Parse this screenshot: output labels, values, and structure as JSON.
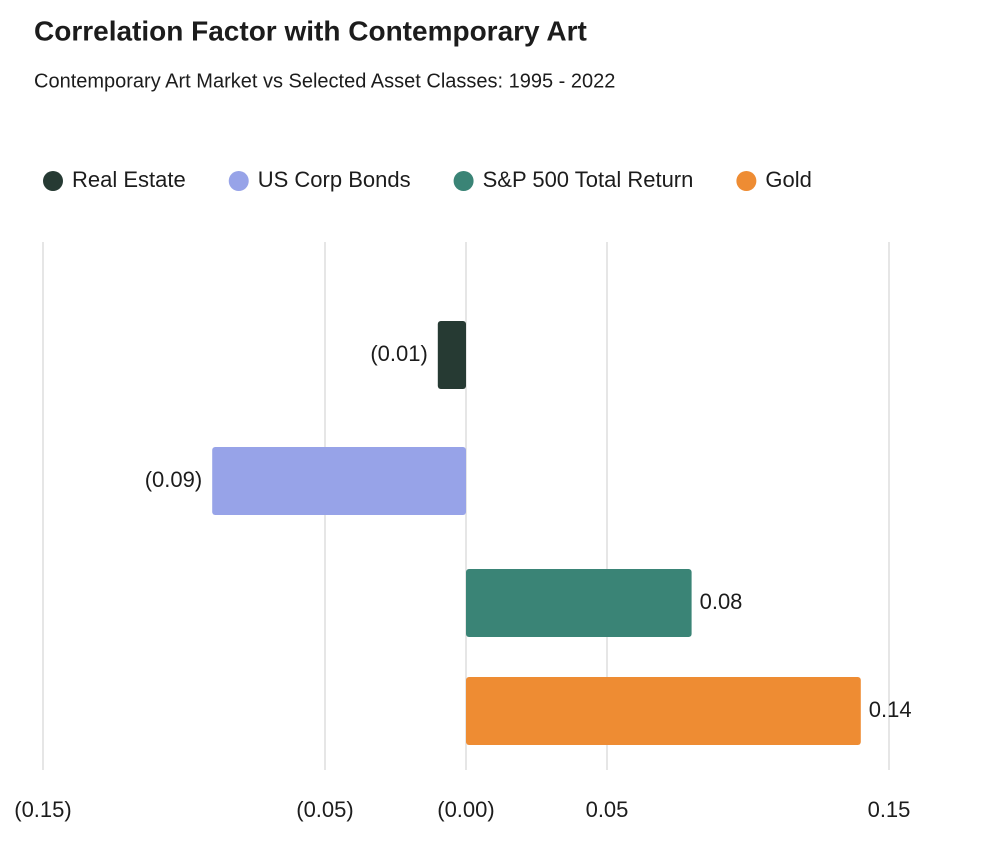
{
  "chart_data": {
    "type": "bar",
    "orientation": "horizontal",
    "title": "Correlation Factor with Contemporary Art",
    "subtitle": "Contemporary Art Market vs Selected Asset Classes: 1995 - 2022",
    "series": [
      {
        "name": "Real Estate",
        "color": "#263a33",
        "values": [
          -0.01
        ],
        "value_labels": [
          "(0.01)"
        ]
      },
      {
        "name": "US Corp Bonds",
        "color": "#97a3e8",
        "values": [
          -0.09
        ],
        "value_labels": [
          "(0.09)"
        ]
      },
      {
        "name": "S&P 500 Total Return",
        "color": "#3a8476",
        "values": [
          0.08
        ],
        "value_labels": [
          "0.08"
        ]
      },
      {
        "name": "Gold",
        "color": "#ee8c33",
        "values": [
          0.14
        ],
        "value_labels": [
          "0.14"
        ]
      }
    ],
    "xlim": [
      -0.15,
      0.15
    ],
    "xticks": [
      {
        "value": -0.15,
        "label": "(0.15)"
      },
      {
        "value": -0.05,
        "label": "(0.05)"
      },
      {
        "value": 0,
        "label": "(0.00)"
      },
      0.05,
      0.15
    ],
    "grid": true,
    "legend": "top"
  }
}
